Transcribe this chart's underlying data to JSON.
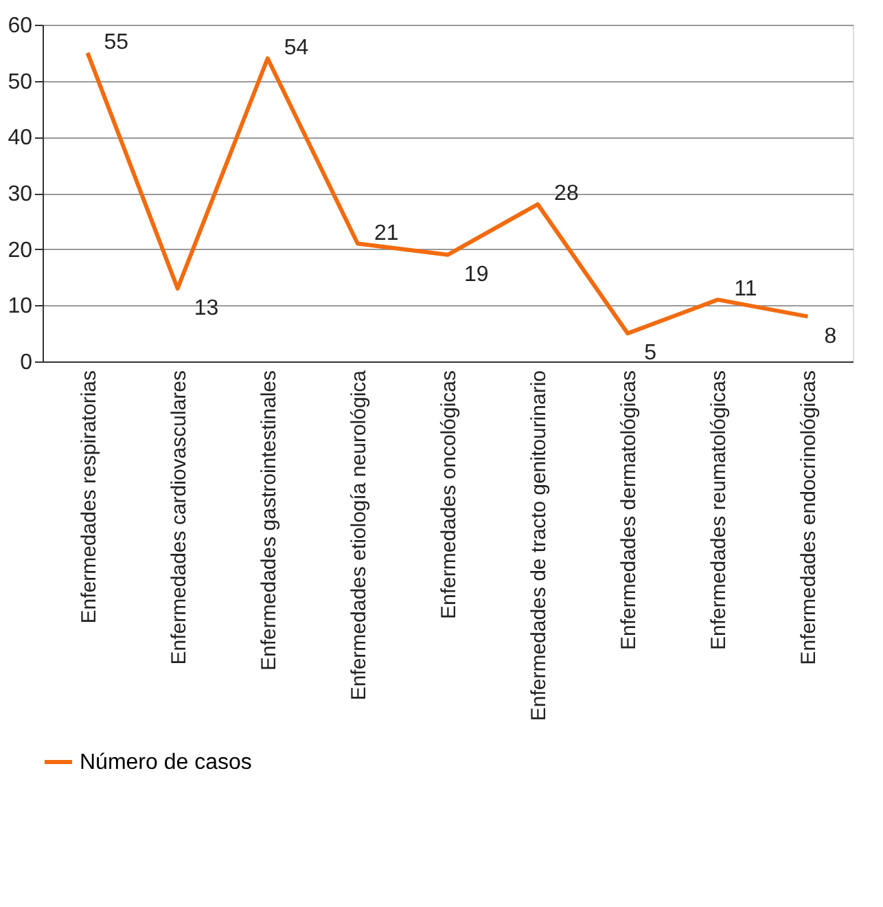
{
  "chart_data": {
    "type": "line",
    "categories": [
      "Enfermedades respiratorias",
      "Enfermedades cardiovasculares",
      "Enfermedades gastrointestinales",
      "Enfermedades etiología neurológica",
      "Enfermedades oncológicas",
      "Enfermedades de tracto genitourinario",
      "Enfermedades dermatológicas",
      "Enfermedades reumatológicas",
      "Enfermedades endocrinológicas"
    ],
    "series": [
      {
        "name": "Número de casos",
        "color": "#f26b0f",
        "values": [
          55,
          13,
          54,
          21,
          19,
          28,
          5,
          11,
          8
        ]
      }
    ],
    "ylim": [
      0,
      60
    ],
    "yticks": [
      0,
      10,
      20,
      30,
      40,
      50,
      60
    ],
    "grid": "y",
    "legend": "bottom",
    "data_labels": true,
    "marker": "none",
    "line_style": "solid"
  }
}
